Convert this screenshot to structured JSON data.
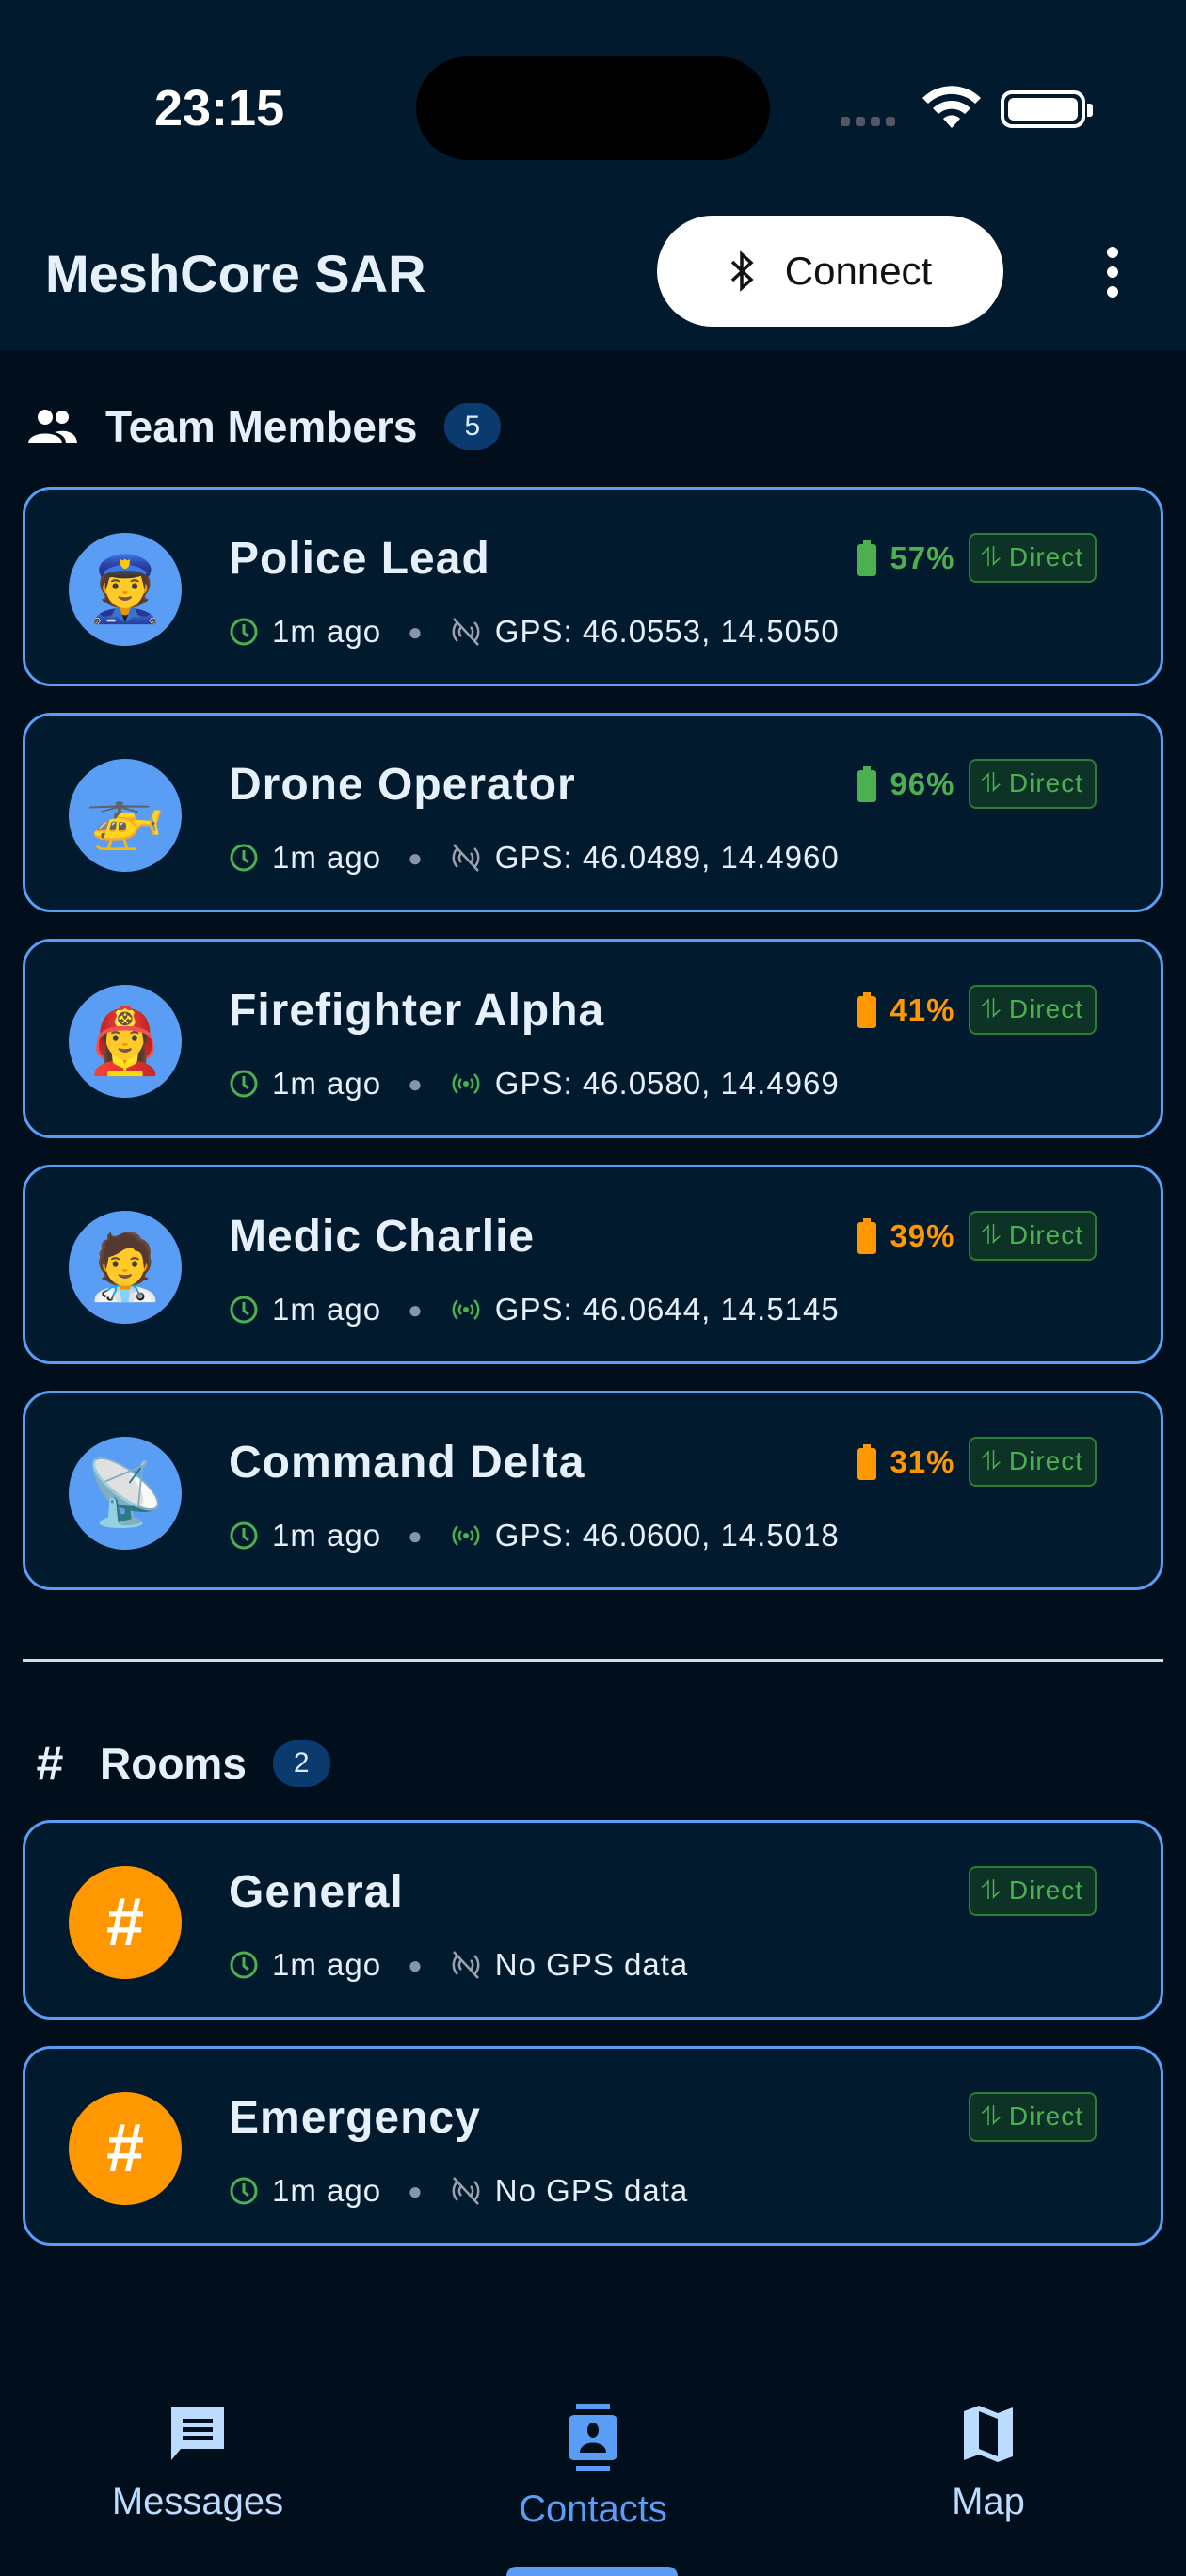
{
  "status_bar": {
    "time": "23:15"
  },
  "header": {
    "title": "MeshCore SAR",
    "connect_label": "Connect"
  },
  "team": {
    "title": "Team Members",
    "count": "5",
    "members": [
      {
        "name": "Police Lead",
        "emoji": "👮",
        "battery": "57%",
        "battery_color": "#4caf50",
        "route": "Direct",
        "last_seen": "1m ago",
        "gps": "GPS: 46.0553, 14.5050",
        "gps_live": false
      },
      {
        "name": "Drone Operator",
        "emoji": "🚁",
        "battery": "96%",
        "battery_color": "#4caf50",
        "route": "Direct",
        "last_seen": "1m ago",
        "gps": "GPS: 46.0489, 14.4960",
        "gps_live": false
      },
      {
        "name": "Firefighter Alpha",
        "emoji": "👩‍🚒",
        "battery": "41%",
        "battery_color": "#ff9800",
        "route": "Direct",
        "last_seen": "1m ago",
        "gps": "GPS: 46.0580, 14.4969",
        "gps_live": true
      },
      {
        "name": "Medic Charlie",
        "emoji": "🧑‍⚕️",
        "battery": "39%",
        "battery_color": "#ff9800",
        "route": "Direct",
        "last_seen": "1m ago",
        "gps": "GPS: 46.0644, 14.5145",
        "gps_live": true
      },
      {
        "name": "Command Delta",
        "emoji": "📡",
        "battery": "31%",
        "battery_color": "#ff9800",
        "route": "Direct",
        "last_seen": "1m ago",
        "gps": "GPS: 46.0600, 14.5018",
        "gps_live": true
      }
    ]
  },
  "rooms": {
    "title": "Rooms",
    "count": "2",
    "items": [
      {
        "name": "General",
        "symbol": "#",
        "route": "Direct",
        "last_seen": "1m ago",
        "gps": "No GPS data"
      },
      {
        "name": "Emergency",
        "symbol": "#",
        "route": "Direct",
        "last_seen": "1m ago",
        "gps": "No GPS data"
      }
    ]
  },
  "nav": {
    "tabs": [
      {
        "label": "Messages",
        "icon": "message-icon"
      },
      {
        "label": "Contacts",
        "icon": "contacts-icon",
        "active": true
      },
      {
        "label": "Map",
        "icon": "map-icon"
      }
    ]
  }
}
